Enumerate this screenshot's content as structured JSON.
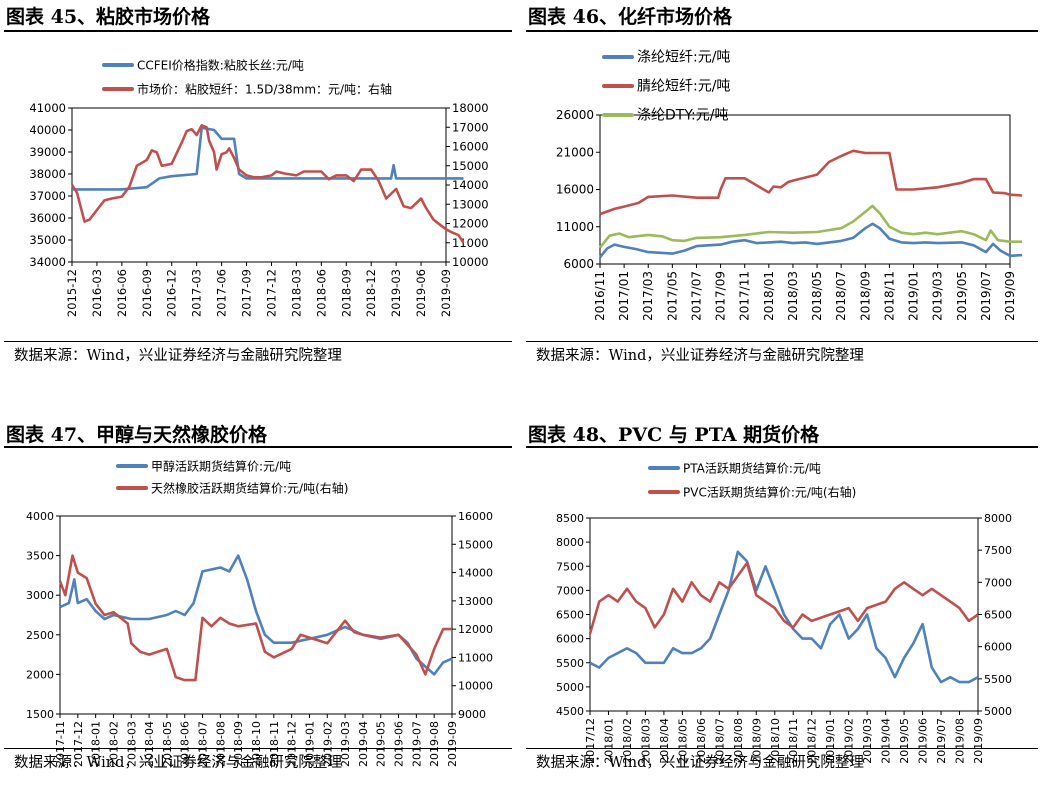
{
  "colors": {
    "blue": "#4f81bd",
    "red": "#c0504d",
    "green": "#9bbb59"
  },
  "panels": [
    {
      "title": "图表 45、粘胶市场价格",
      "source": "数据来源：Wind，兴业证券经济与金融研究院整理",
      "chart_data": {
        "type": "line",
        "title": "",
        "xlabel": "",
        "ylabel": "",
        "x_ticks": [
          "2015-12",
          "2016-03",
          "2016-06",
          "2016-09",
          "2016-12",
          "2017-03",
          "2017-06",
          "2017-09",
          "2017-12",
          "2018-03",
          "2018-06",
          "2018-09",
          "2018-12",
          "2019-03",
          "2019-06",
          "2019-09"
        ],
        "ylim_left": [
          34000,
          41000
        ],
        "yticks_left": [
          34000,
          35000,
          36000,
          37000,
          38000,
          39000,
          40000,
          41000
        ],
        "ylim_right": [
          10000,
          18000
        ],
        "yticks_right": [
          10000,
          11000,
          12000,
          13000,
          14000,
          15000,
          16000,
          17000,
          18000
        ],
        "legend_position": "top",
        "series": [
          {
            "name": "CCFEI价格指数:粘胶长丝:元/吨",
            "color": "blue",
            "axis": "left",
            "x": [
              0,
              0.3,
              1,
              2,
              3,
              3.5,
              4,
              5,
              5.2,
              5.7,
              6,
              6.5,
              6.7,
              7,
              7.5,
              8,
              9,
              10,
              11,
              12,
              12.8,
              12.9,
              13,
              13.6,
              14,
              15,
              15.7
            ],
            "y": [
              37300,
              37300,
              37300,
              37300,
              37400,
              37800,
              37900,
              38000,
              40100,
              40000,
              39600,
              39600,
              38000,
              37800,
              37800,
              37800,
              37800,
              37800,
              37800,
              37800,
              37800,
              38400,
              37800,
              37800,
              37800,
              37800,
              37800
            ]
          },
          {
            "name": "市场价：粘胶短纤：1.5D/38mm：元/吨：右轴",
            "color": "red",
            "axis": "right",
            "x": [
              0,
              0.2,
              0.4,
              0.5,
              0.7,
              1,
              1.3,
              1.6,
              2,
              2.3,
              2.6,
              3,
              3.2,
              3.4,
              3.6,
              4,
              4.4,
              4.6,
              4.8,
              5,
              5.2,
              5.4,
              5.5,
              5.7,
              5.8,
              6,
              6.2,
              6.3,
              6.5,
              6.7,
              7,
              7.3,
              7.6,
              8,
              8.2,
              8.5,
              9,
              9.3,
              9.6,
              10,
              10.3,
              10.6,
              11,
              11.3,
              11.6,
              12,
              12.3,
              12.6,
              13,
              13.3,
              13.6,
              14,
              14.2,
              14.5,
              15,
              15.3,
              15.5,
              15.7
            ],
            "y": [
              14000,
              13600,
              12600,
              12100,
              12200,
              12700,
              13200,
              13300,
              13400,
              13900,
              15000,
              15300,
              15800,
              15700,
              15000,
              15100,
              16200,
              16800,
              16900,
              16600,
              17100,
              17000,
              16300,
              15700,
              14800,
              15600,
              15700,
              15900,
              15400,
              14800,
              14500,
              14400,
              14400,
              14500,
              14700,
              14600,
              14500,
              14700,
              14700,
              14700,
              14300,
              14500,
              14500,
              14200,
              14800,
              14800,
              14200,
              13300,
              13800,
              12900,
              12800,
              13300,
              12800,
              12200,
              11700,
              11500,
              11400,
              11000
            ]
          }
        ]
      }
    },
    {
      "title": "图表 46、化纤市场价格",
      "source": "数据来源：Wind，兴业证券经济与金融研究院整理",
      "chart_data": {
        "type": "line",
        "title": "",
        "xlabel": "",
        "ylabel": "",
        "x_ticks": [
          "2016/11",
          "2017/01",
          "2017/03",
          "2017/05",
          "2017/07",
          "2017/09",
          "2017/11",
          "2018/01",
          "2018/03",
          "2018/05",
          "2018/07",
          "2018/09",
          "2018/11",
          "2019/01",
          "2019/03",
          "2019/05",
          "2019/07",
          "2019/09"
        ],
        "ylim_left": [
          6000,
          26000
        ],
        "yticks_left": [
          6000,
          11000,
          16000,
          21000,
          26000
        ],
        "legend_position": "top",
        "series": [
          {
            "name": "涤纶短纤:元/吨",
            "color": "blue",
            "axis": "left",
            "x": [
              0,
              0.3,
              0.6,
              1,
              1.5,
              2,
              2.5,
              3,
              3.5,
              4,
              5,
              5.5,
              6,
              6.5,
              7,
              7.5,
              8,
              8.5,
              9,
              9.5,
              10,
              10.5,
              11,
              11.3,
              11.6,
              12,
              12.5,
              13,
              13.5,
              14,
              15,
              15.5,
              16,
              16.3,
              16.6,
              17,
              17.5
            ],
            "y": [
              6900,
              8100,
              8600,
              8300,
              8000,
              7600,
              7500,
              7400,
              7800,
              8400,
              8600,
              9000,
              9200,
              8800,
              8900,
              9000,
              8800,
              8900,
              8700,
              8900,
              9100,
              9500,
              10800,
              11400,
              10800,
              9400,
              8900,
              8800,
              8900,
              8800,
              8900,
              8500,
              7600,
              8700,
              7800,
              7100,
              7200
            ]
          },
          {
            "name": "腈纶短纤:元/吨",
            "color": "red",
            "axis": "left",
            "x": [
              0,
              0.6,
              1,
              1.6,
              2,
              3,
              4,
              4.9,
              5,
              5.2,
              6,
              7,
              7.2,
              7.5,
              7.8,
              8,
              9,
              9.5,
              10,
              10.5,
              11,
              11.5,
              12,
              12.3,
              12.5,
              13,
              14,
              15,
              15.5,
              16,
              16.3,
              16.8,
              17,
              17.5
            ],
            "y": [
              12700,
              13400,
              13700,
              14200,
              15000,
              15200,
              14900,
              14900,
              16000,
              17500,
              17500,
              15600,
              16400,
              16300,
              17000,
              17200,
              18000,
              19700,
              20500,
              21200,
              20900,
              20900,
              20900,
              16000,
              16000,
              16000,
              16300,
              16900,
              17400,
              17400,
              15600,
              15500,
              15300,
              15200
            ]
          },
          {
            "name": "涤纶DTY:元/吨",
            "color": "green",
            "axis": "left",
            "x": [
              0,
              0.4,
              0.8,
              1.2,
              2,
              2.6,
              3,
              3.5,
              4,
              5,
              6,
              7,
              8,
              9,
              10,
              10.5,
              11,
              11.3,
              11.6,
              12,
              12.5,
              13,
              13.5,
              14,
              15,
              15.5,
              16,
              16.2,
              16.5,
              17,
              17.5
            ],
            "y": [
              8200,
              9800,
              10100,
              9600,
              9900,
              9700,
              9200,
              9100,
              9500,
              9600,
              9900,
              10300,
              10200,
              10300,
              10800,
              11700,
              13000,
              13800,
              12800,
              11000,
              10200,
              10000,
              10200,
              10000,
              10400,
              10000,
              9200,
              10500,
              9200,
              9000,
              9000
            ]
          }
        ]
      }
    },
    {
      "title": "图表 47、甲醇与天然橡胶价格",
      "source": "数据来源：Wind，兴业证券经济与金融研究院整理",
      "chart_data": {
        "type": "line",
        "title": "",
        "xlabel": "",
        "ylabel": "",
        "x_ticks": [
          "2017-11",
          "2017-12",
          "2018-01",
          "2018-02",
          "2018-03",
          "2018-04",
          "2018-05",
          "2018-06",
          "2018-07",
          "2018-08",
          "2018-09",
          "2018-10",
          "2018-11",
          "2018-12",
          "2019-01",
          "2019-02",
          "2019-03",
          "2019-04",
          "2019-05",
          "2019-06",
          "2019-07",
          "2019-08",
          "2019-09"
        ],
        "ylim_left": [
          1500,
          4000
        ],
        "yticks_left": [
          1500,
          2000,
          2500,
          3000,
          3500,
          4000
        ],
        "ylim_right": [
          9000,
          16000
        ],
        "yticks_right": [
          9000,
          10000,
          11000,
          12000,
          13000,
          14000,
          15000,
          16000
        ],
        "legend_position": "top",
        "series": [
          {
            "name": "甲醇活跃期货结算价:元/吨",
            "color": "blue",
            "axis": "left",
            "x": [
              0,
              0.5,
              0.8,
              1,
              1.5,
              2,
              2.5,
              3,
              4,
              5,
              6,
              6.5,
              7,
              7.5,
              8,
              9,
              9.5,
              10,
              10.5,
              11,
              11.5,
              12,
              13,
              14,
              15,
              16,
              17,
              18,
              19,
              19.5,
              20,
              20.5,
              21,
              21.5,
              22
            ],
            "y": [
              2850,
              2900,
              3200,
              2900,
              2950,
              2800,
              2700,
              2750,
              2700,
              2700,
              2750,
              2800,
              2750,
              2900,
              3300,
              3350,
              3300,
              3500,
              3200,
              2800,
              2500,
              2400,
              2400,
              2450,
              2500,
              2600,
              2500,
              2450,
              2500,
              2400,
              2200,
              2100,
              2000,
              2150,
              2200
            ]
          },
          {
            "name": "天然橡胶活跃期货结算价:元/吨(右轴)",
            "color": "red",
            "axis": "right",
            "x": [
              0,
              0.3,
              0.7,
              1,
              1.5,
              2,
              2.5,
              3,
              3.8,
              4,
              4.5,
              5,
              6,
              6.5,
              7,
              7.6,
              8,
              8.5,
              9,
              9.5,
              10,
              11,
              11.5,
              12,
              13,
              13.5,
              14,
              15,
              16,
              16.5,
              17,
              18,
              19,
              20,
              20.5,
              21,
              21.5,
              22
            ],
            "y": [
              13700,
              13200,
              14600,
              14000,
              13800,
              12900,
              12500,
              12600,
              12200,
              11500,
              11200,
              11100,
              11300,
              10300,
              10200,
              10200,
              12400,
              12100,
              12400,
              12200,
              12100,
              12200,
              11200,
              11000,
              11300,
              11800,
              11700,
              11500,
              12300,
              11900,
              11800,
              11700,
              11800,
              11100,
              10400,
              11300,
              12000,
              12000
            ]
          }
        ]
      }
    },
    {
      "title": "图表 48、PVC 与 PTA 期货价格",
      "source": "数据来源：Wind，兴业证券经济与金融研究院整理",
      "chart_data": {
        "type": "line",
        "title": "",
        "xlabel": "",
        "ylabel": "",
        "x_ticks": [
          "2017/12",
          "2018/01",
          "2018/02",
          "2018/03",
          "2018/04",
          "2018/05",
          "2018/06",
          "2018/07",
          "2018/08",
          "2018/09",
          "2018/10",
          "2018/11",
          "2018/12",
          "2019/01",
          "2019/02",
          "2019/03",
          "2019/04",
          "2019/05",
          "2019/06",
          "2019/07",
          "2019/08",
          "2019/09"
        ],
        "ylim_left": [
          4500,
          8500
        ],
        "yticks_left": [
          4500,
          5000,
          5500,
          6000,
          6500,
          7000,
          7500,
          8000,
          8500
        ],
        "ylim_right": [
          5000,
          8000
        ],
        "yticks_right": [
          5000,
          5500,
          6000,
          6500,
          7000,
          7500,
          8000
        ],
        "legend_position": "top",
        "series": [
          {
            "name": "PTA活跃期货结算价:元/吨",
            "color": "blue",
            "axis": "left",
            "x": [
              0,
              0.5,
              1,
              1.5,
              2,
              2.5,
              3,
              4,
              4.5,
              5,
              5.5,
              6,
              6.5,
              7,
              7.5,
              8,
              8.5,
              9,
              9.5,
              10,
              10.5,
              11,
              11.5,
              12,
              12.5,
              13,
              13.5,
              14,
              14.5,
              15,
              15.5,
              16,
              16.5,
              17,
              17.5,
              18,
              18.5,
              19,
              19.5,
              20,
              20.5,
              21
            ],
            "y": [
              5500,
              5400,
              5600,
              5700,
              5800,
              5700,
              5500,
              5500,
              5800,
              5700,
              5700,
              5800,
              6000,
              6500,
              7000,
              7800,
              7600,
              7000,
              7500,
              7000,
              6500,
              6200,
              6000,
              6000,
              5800,
              6300,
              6500,
              6000,
              6200,
              6500,
              5800,
              5600,
              5200,
              5600,
              5900,
              6300,
              5400,
              5100,
              5200,
              5100,
              5100,
              5200
            ]
          },
          {
            "name": "PVC活跃期货结算价:元/吨(右轴)",
            "color": "red",
            "axis": "right",
            "x": [
              0,
              0.5,
              1,
              1.5,
              2,
              2.5,
              3,
              3.5,
              4,
              4.5,
              5,
              5.5,
              6,
              6.5,
              7,
              7.5,
              8,
              8.5,
              9,
              9.5,
              10,
              10.5,
              11,
              11.5,
              12,
              13,
              14,
              14.5,
              15,
              16,
              16.5,
              17,
              17.5,
              18,
              18.5,
              19,
              19.5,
              20,
              20.5,
              21
            ],
            "y": [
              6200,
              6700,
              6800,
              6700,
              6900,
              6700,
              6600,
              6300,
              6500,
              6900,
              6700,
              7000,
              6800,
              6700,
              7000,
              6900,
              7100,
              7300,
              6800,
              6700,
              6600,
              6400,
              6300,
              6500,
              6400,
              6500,
              6600,
              6400,
              6600,
              6700,
              6900,
              7000,
              6900,
              6800,
              6900,
              6800,
              6700,
              6600,
              6400,
              6500
            ]
          }
        ]
      }
    }
  ]
}
